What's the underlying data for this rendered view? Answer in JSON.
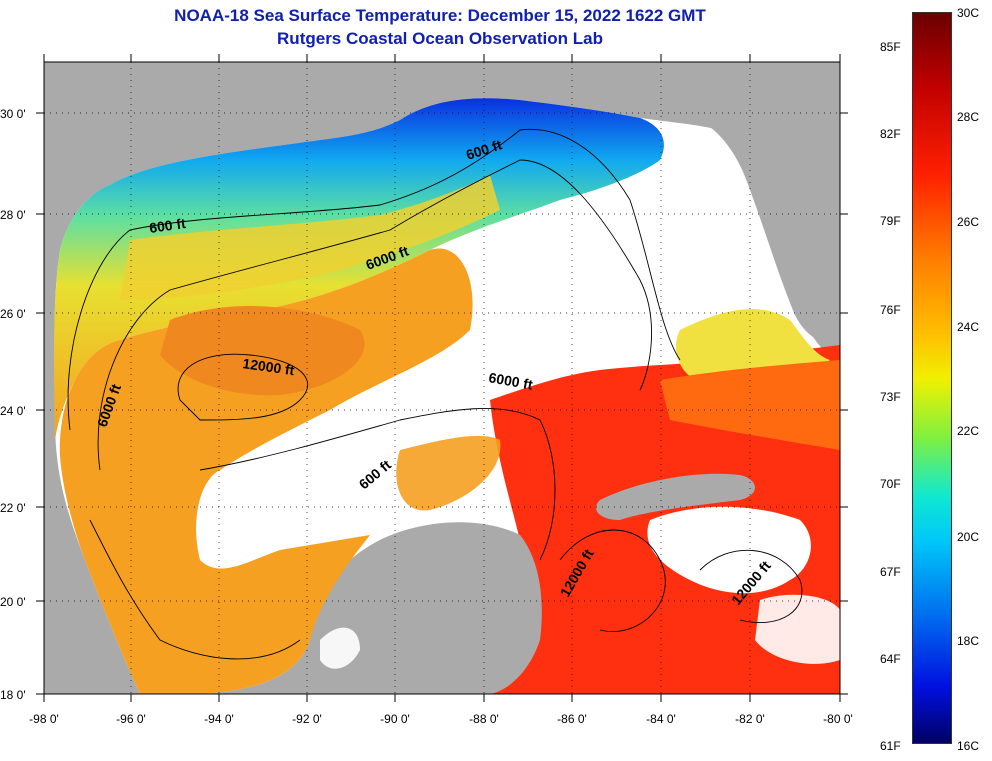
{
  "title": "NOAA-18 Sea Surface Temperature:  December 15, 2022 1622 GMT",
  "subtitle": "Rutgers Coastal Ocean Observation Lab",
  "lat_ticks": [
    "18 0'",
    "20 0'",
    "22 0'",
    "24 0'",
    "26 0'",
    "28 0'",
    "30 0'"
  ],
  "lon_ticks": [
    "-98 0'",
    "-96 0'",
    "-94 0'",
    "-92 0'",
    "-90 0'",
    "-88 0'",
    "-86 0'",
    "-84 0'",
    "-82 0'",
    "-80 0'"
  ],
  "contour_labels": [
    "600 ft",
    "600 ft",
    "6000 ft",
    "12000 ft",
    "6000 ft",
    "6000 ft",
    "600 ft",
    "12000 ft",
    "12000 ft"
  ],
  "colorbar": {
    "fahrenheit": [
      "85F",
      "82F",
      "79F",
      "76F",
      "73F",
      "70F",
      "67F",
      "64F",
      "61F"
    ],
    "celsius": [
      "30C",
      "28C",
      "26C",
      "24C",
      "22C",
      "20C",
      "18C",
      "16C"
    ]
  },
  "colors": {
    "title": "#1020b0",
    "land": "#aaaaaa",
    "no_data": "#ffffff"
  }
}
